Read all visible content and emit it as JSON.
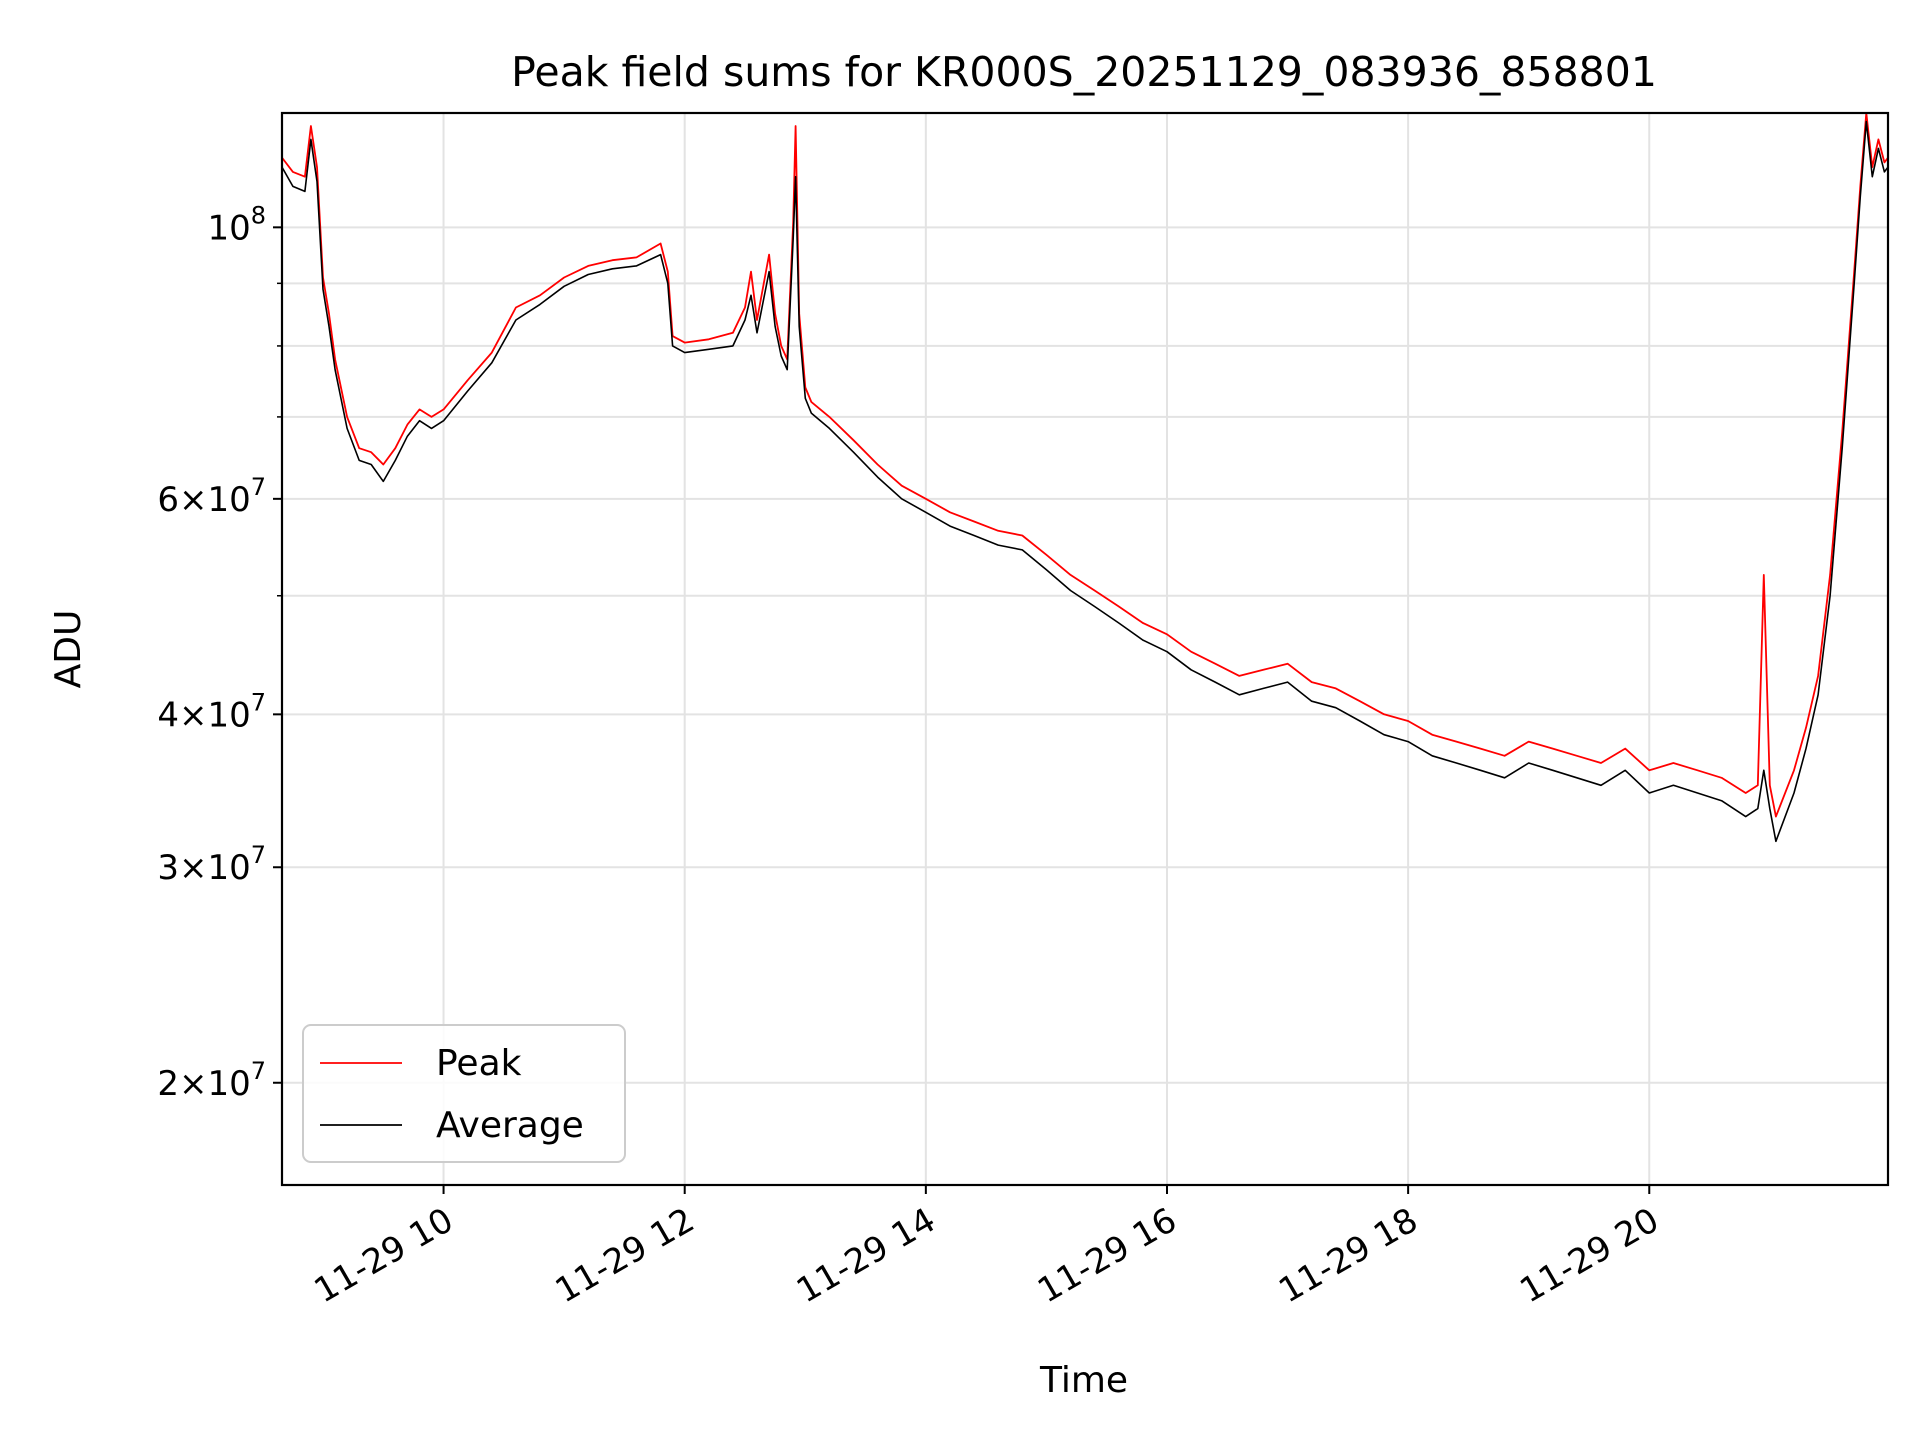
{
  "chart_data": {
    "type": "line",
    "title": "Peak field sums for KR000S_20251129_083936_858801",
    "xlabel": "Time",
    "ylabel": "ADU",
    "yscale": "log",
    "xlim": [
      8.66,
      21.98
    ],
    "ylim": [
      16500000,
      124000000
    ],
    "grid": true,
    "legend_position": "lower-left",
    "x_ticks": [
      {
        "value": 10,
        "label": "11-29 10"
      },
      {
        "value": 12,
        "label": "11-29 12"
      },
      {
        "value": 14,
        "label": "11-29 14"
      },
      {
        "value": 16,
        "label": "11-29 16"
      },
      {
        "value": 18,
        "label": "11-29 18"
      },
      {
        "value": 20,
        "label": "11-29 20"
      }
    ],
    "y_ticks": [
      {
        "value": 20000000,
        "mantissa": "2",
        "exp": "7"
      },
      {
        "value": 30000000,
        "mantissa": "3",
        "exp": "7"
      },
      {
        "value": 40000000,
        "mantissa": "4",
        "exp": "7"
      },
      {
        "value": 60000000,
        "mantissa": "6",
        "exp": "7"
      },
      {
        "value": 100000000,
        "mantissa": "",
        "exp": "8"
      }
    ],
    "y_minor_ticks": [
      50000000,
      70000000,
      80000000,
      90000000
    ],
    "series": [
      {
        "name": "Peak",
        "color": "#ff0000",
        "x": [
          8.66,
          8.75,
          8.85,
          8.9,
          8.95,
          9.0,
          9.05,
          9.1,
          9.2,
          9.3,
          9.4,
          9.5,
          9.6,
          9.7,
          9.8,
          9.9,
          10.0,
          10.2,
          10.4,
          10.6,
          10.8,
          11.0,
          11.2,
          11.4,
          11.6,
          11.8,
          11.86,
          11.9,
          12.0,
          12.2,
          12.4,
          12.5,
          12.55,
          12.6,
          12.7,
          12.75,
          12.8,
          12.85,
          12.9,
          12.92,
          12.95,
          13.0,
          13.05,
          13.2,
          13.4,
          13.6,
          13.8,
          14.0,
          14.2,
          14.4,
          14.6,
          14.8,
          15.0,
          15.2,
          15.4,
          15.6,
          15.8,
          16.0,
          16.2,
          16.4,
          16.6,
          16.8,
          17.0,
          17.2,
          17.4,
          17.6,
          17.8,
          18.0,
          18.2,
          18.4,
          18.6,
          18.8,
          19.0,
          19.2,
          19.4,
          19.6,
          19.8,
          20.0,
          20.2,
          20.4,
          20.6,
          20.8,
          20.9,
          20.95,
          21.0,
          21.05,
          21.2,
          21.3,
          21.4,
          21.5,
          21.6,
          21.7,
          21.75,
          21.8,
          21.85,
          21.9,
          21.95,
          21.98
        ],
        "y": [
          114000000,
          111000000,
          110000000,
          121000000,
          112000000,
          91000000,
          85000000,
          78000000,
          70000000,
          66000000,
          65500000,
          64000000,
          66000000,
          69000000,
          71000000,
          70000000,
          71000000,
          75000000,
          79000000,
          86000000,
          88000000,
          91000000,
          93000000,
          94000000,
          94500000,
          97000000,
          92000000,
          81500000,
          80500000,
          81000000,
          82000000,
          86000000,
          92000000,
          84000000,
          95000000,
          85000000,
          80000000,
          78000000,
          101000000,
          121000000,
          85000000,
          74000000,
          72000000,
          70000000,
          67000000,
          64000000,
          61500000,
          60000000,
          58500000,
          57500000,
          56500000,
          56000000,
          54000000,
          52000000,
          50500000,
          49000000,
          47500000,
          46500000,
          45000000,
          44000000,
          43000000,
          43500000,
          44000000,
          42500000,
          42000000,
          41000000,
          40000000,
          39500000,
          38500000,
          38000000,
          37500000,
          37000000,
          38000000,
          37500000,
          37000000,
          36500000,
          37500000,
          36000000,
          36500000,
          36000000,
          35500000,
          34500000,
          35000000,
          52000000,
          35000000,
          33000000,
          36000000,
          39000000,
          43000000,
          52000000,
          68000000,
          92000000,
          108000000,
          124000000,
          112000000,
          118000000,
          113000000,
          114000000
        ]
      },
      {
        "name": "Average",
        "color": "#000000",
        "x": [
          8.66,
          8.75,
          8.85,
          8.9,
          8.95,
          9.0,
          9.05,
          9.1,
          9.2,
          9.3,
          9.4,
          9.5,
          9.6,
          9.7,
          9.8,
          9.9,
          10.0,
          10.2,
          10.4,
          10.6,
          10.8,
          11.0,
          11.2,
          11.4,
          11.6,
          11.8,
          11.86,
          11.9,
          12.0,
          12.2,
          12.4,
          12.5,
          12.55,
          12.6,
          12.7,
          12.75,
          12.8,
          12.85,
          12.9,
          12.92,
          12.95,
          13.0,
          13.05,
          13.2,
          13.4,
          13.6,
          13.8,
          14.0,
          14.2,
          14.4,
          14.6,
          14.8,
          15.0,
          15.2,
          15.4,
          15.6,
          15.8,
          16.0,
          16.2,
          16.4,
          16.6,
          16.8,
          17.0,
          17.2,
          17.4,
          17.6,
          17.8,
          18.0,
          18.2,
          18.4,
          18.6,
          18.8,
          19.0,
          19.2,
          19.4,
          19.6,
          19.8,
          20.0,
          20.2,
          20.4,
          20.6,
          20.8,
          20.9,
          20.95,
          21.0,
          21.05,
          21.2,
          21.3,
          21.4,
          21.5,
          21.6,
          21.7,
          21.75,
          21.8,
          21.85,
          21.9,
          21.95,
          21.98
        ],
        "y": [
          112000000,
          108000000,
          107000000,
          118000000,
          109000000,
          89000000,
          83000000,
          76500000,
          68500000,
          64500000,
          64000000,
          62000000,
          64500000,
          67500000,
          69500000,
          68500000,
          69500000,
          73500000,
          77500000,
          84000000,
          86500000,
          89500000,
          91500000,
          92500000,
          93000000,
          95000000,
          90000000,
          80000000,
          79000000,
          79500000,
          80000000,
          84000000,
          88000000,
          82000000,
          92000000,
          83000000,
          78500000,
          76500000,
          98000000,
          110000000,
          83000000,
          72500000,
          70500000,
          68500000,
          65500000,
          62500000,
          60000000,
          58500000,
          57000000,
          56000000,
          55000000,
          54500000,
          52500000,
          50500000,
          49000000,
          47500000,
          46000000,
          45000000,
          43500000,
          42500000,
          41500000,
          42000000,
          42500000,
          41000000,
          40500000,
          39500000,
          38500000,
          38000000,
          37000000,
          36500000,
          36000000,
          35500000,
          36500000,
          36000000,
          35500000,
          35000000,
          36000000,
          34500000,
          35000000,
          34500000,
          34000000,
          33000000,
          33500000,
          36000000,
          33500000,
          31500000,
          34500000,
          37500000,
          41500000,
          50000000,
          66000000,
          90000000,
          106000000,
          122000000,
          110000000,
          116000000,
          111000000,
          112000000
        ]
      }
    ]
  }
}
